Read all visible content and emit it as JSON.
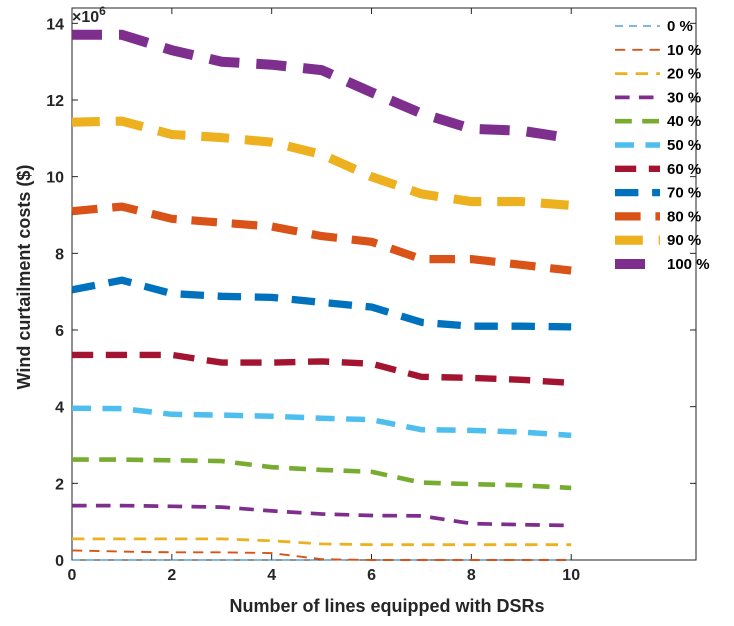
{
  "chart_data": {
    "type": "line",
    "title": "",
    "xlabel": "Number of lines equipped with DSRs",
    "ylabel": "Wind curtailment costs ($)",
    "y_multiplier_label": "×10",
    "y_multiplier_exponent": "6",
    "xlim": [
      0,
      12.5
    ],
    "ylim": [
      0,
      14.4
    ],
    "x_ticks": [
      0,
      2,
      4,
      6,
      8,
      10
    ],
    "x_tick_labels": [
      "0",
      "2",
      "4",
      "6",
      "8",
      "10"
    ],
    "y_ticks": [
      0,
      2,
      4,
      6,
      8,
      10,
      12,
      14
    ],
    "y_tick_labels": [
      "0",
      "2",
      "4",
      "6",
      "8",
      "10",
      "12",
      "14"
    ],
    "grid": false,
    "legend_position": "top-right",
    "x": [
      0,
      1,
      2,
      3,
      4,
      5,
      6,
      7,
      8,
      9,
      10
    ],
    "series": [
      {
        "name": "0 %",
        "color": "#0072BD",
        "values": [
          0,
          0,
          0,
          0,
          0,
          0,
          0,
          0,
          0,
          0,
          0
        ]
      },
      {
        "name": "10 %",
        "color": "#D95319",
        "values": [
          0.25,
          0.22,
          0.2,
          0.2,
          0.18,
          0.02,
          0,
          0,
          0,
          0,
          0
        ]
      },
      {
        "name": "20 %",
        "color": "#EDB120",
        "values": [
          0.55,
          0.55,
          0.55,
          0.55,
          0.5,
          0.42,
          0.4,
          0.4,
          0.4,
          0.4,
          0.4
        ]
      },
      {
        "name": "30 %",
        "color": "#7E2F8E",
        "values": [
          1.42,
          1.42,
          1.4,
          1.38,
          1.28,
          1.2,
          1.16,
          1.15,
          0.95,
          0.92,
          0.9
        ]
      },
      {
        "name": "40 %",
        "color": "#77AC30",
        "values": [
          2.62,
          2.62,
          2.6,
          2.58,
          2.42,
          2.35,
          2.3,
          2.02,
          1.98,
          1.95,
          1.88
        ]
      },
      {
        "name": "50 %",
        "color": "#4DBEEE",
        "values": [
          3.96,
          3.95,
          3.8,
          3.78,
          3.75,
          3.7,
          3.66,
          3.4,
          3.38,
          3.34,
          3.25
        ]
      },
      {
        "name": "60 %",
        "color": "#A2142F",
        "values": [
          5.35,
          5.35,
          5.35,
          5.15,
          5.15,
          5.18,
          5.12,
          4.78,
          4.75,
          4.7,
          4.62
        ]
      },
      {
        "name": "70 %",
        "color": "#0072BD",
        "values": [
          7.05,
          7.3,
          6.95,
          6.88,
          6.85,
          6.72,
          6.6,
          6.2,
          6.1,
          6.1,
          6.08
        ]
      },
      {
        "name": "80 %",
        "color": "#D95319",
        "values": [
          9.1,
          9.22,
          8.9,
          8.8,
          8.7,
          8.45,
          8.3,
          7.85,
          7.85,
          7.7,
          7.55
        ]
      },
      {
        "name": "90 %",
        "color": "#EDB120",
        "values": [
          11.42,
          11.45,
          11.1,
          11.02,
          10.9,
          10.58,
          10.0,
          9.55,
          9.35,
          9.35,
          9.25
        ]
      },
      {
        "name": "100 %",
        "color": "#7E2F8E",
        "values": [
          13.7,
          13.7,
          13.3,
          13.0,
          12.92,
          12.78,
          12.2,
          11.65,
          11.25,
          11.2,
          11.0
        ]
      }
    ]
  }
}
